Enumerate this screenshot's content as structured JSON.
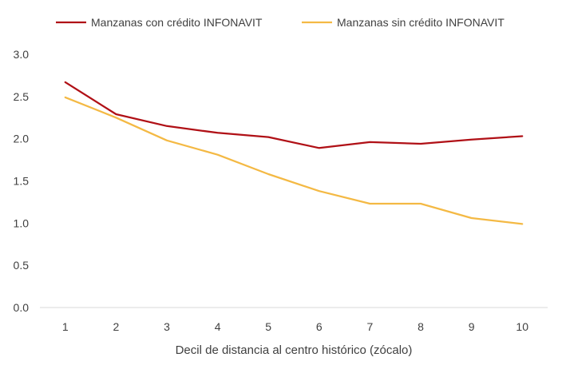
{
  "chart_data": {
    "type": "line",
    "title": "",
    "xlabel": "Decil de distancia al centro histórico (zócalo)",
    "ylabel": "",
    "categories": [
      "1",
      "2",
      "3",
      "4",
      "5",
      "6",
      "7",
      "8",
      "9",
      "10"
    ],
    "ylim": [
      0,
      3
    ],
    "yticks": [
      "0.0",
      "0.5",
      "1.0",
      "1.5",
      "2.0",
      "2.5",
      "3.0"
    ],
    "grid": false,
    "legend": "top-left",
    "series": [
      {
        "name": "Manzanas con crédito INFONAVIT",
        "color": "#B01016",
        "values": [
          2.67,
          2.29,
          2.15,
          2.07,
          2.02,
          1.89,
          1.96,
          1.94,
          1.99,
          2.03
        ]
      },
      {
        "name": "Manzanas sin crédito INFONAVIT",
        "color": "#F4B944",
        "values": [
          2.49,
          2.25,
          1.98,
          1.81,
          1.58,
          1.38,
          1.23,
          1.23,
          1.06,
          0.99
        ]
      }
    ]
  }
}
